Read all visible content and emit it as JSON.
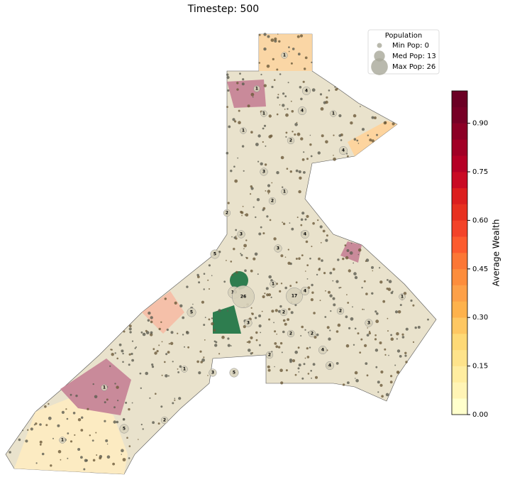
{
  "title": "Timestep: 500",
  "legend": {
    "title": "Population",
    "entries": [
      {
        "label": "Min Pop: 0",
        "value": 0
      },
      {
        "label": "Med Pop: 13",
        "value": 13
      },
      {
        "label": "Max Pop: 26",
        "value": 26
      }
    ]
  },
  "colorbar": {
    "label": "Average Wealth",
    "lim": [
      0,
      1
    ],
    "ticks": [
      {
        "value": 0,
        "label": "0.00"
      },
      {
        "value": 0.15,
        "label": "0.15"
      },
      {
        "value": 0.3,
        "label": "0.30"
      },
      {
        "value": 0.45,
        "label": "0.45"
      },
      {
        "value": 0.6,
        "label": "0.60"
      },
      {
        "value": 0.75,
        "label": "0.75"
      },
      {
        "value": 0.9,
        "label": "0.90"
      }
    ],
    "colors": [
      "#ffffcc",
      "#fff4b5",
      "#ffeda0",
      "#fee38b",
      "#fed976",
      "#fec762",
      "#feb24c",
      "#fda048",
      "#fd8d3c",
      "#fc7735",
      "#fc5b2e",
      "#f34329",
      "#e7301f",
      "#dc1e1e",
      "#c90a24",
      "#b50026",
      "#a10026",
      "#8c0026",
      "#770026",
      "#6b0024"
    ]
  },
  "regions": {
    "populations": [
      1,
      1,
      4,
      1,
      1,
      2,
      4,
      3,
      1,
      2,
      1,
      4,
      3,
      5,
      2,
      4,
      3,
      10,
      26,
      17,
      4,
      2,
      5,
      3,
      2,
      4,
      1,
      5,
      2,
      1,
      2,
      3,
      1,
      4,
      2,
      3,
      5,
      1,
      2,
      1
    ]
  }
}
